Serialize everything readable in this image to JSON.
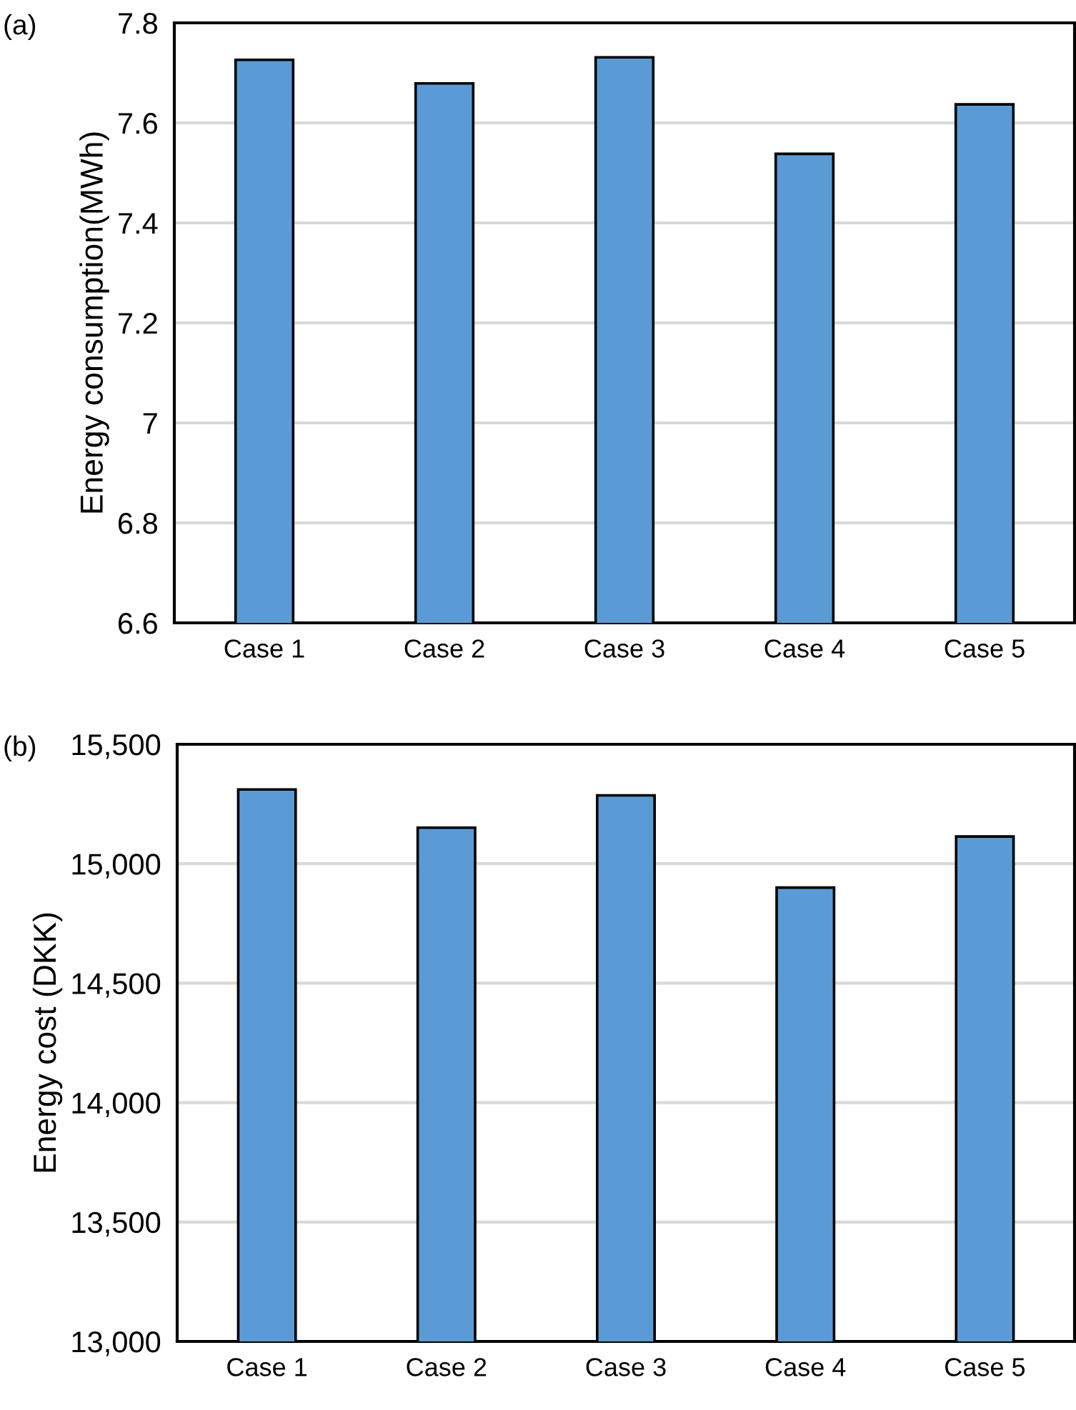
{
  "chart_data": [
    {
      "type": "bar",
      "annotations": [
        "(a)"
      ],
      "ylabel": "Energy consumption(MWh)",
      "categories": [
        "Case 1",
        "Case 2",
        "Case 3",
        "Case 4",
        "Case 5"
      ],
      "values": [
        7.726,
        7.679,
        7.731,
        7.538,
        7.637
      ],
      "color": "#5b9bd5",
      "ylim": [
        6.6,
        7.8
      ],
      "yticks": [
        6.6,
        6.8,
        7,
        7.2,
        7.4,
        7.6,
        7.8
      ],
      "grid": "y"
    },
    {
      "type": "bar",
      "annotations": [
        "(b)"
      ],
      "ylabel": "Energy cost (DKK)",
      "categories": [
        "Case 1",
        "Case 2",
        "Case 3",
        "Case 4",
        "Case 5"
      ],
      "values": [
        15311,
        15151,
        15286,
        14900,
        15114
      ],
      "color": "#5b9bd5",
      "ylim": [
        13000,
        15500
      ],
      "yticks": [
        {
          "value": 13000,
          "label": "13,000"
        },
        {
          "value": 13500,
          "label": "13,500"
        },
        {
          "value": 14000,
          "label": "14,000"
        },
        {
          "value": 14500,
          "label": "14,500"
        },
        {
          "value": 15000,
          "label": "15,000"
        },
        {
          "value": 15500,
          "label": "15,500"
        }
      ],
      "grid": "y"
    }
  ]
}
